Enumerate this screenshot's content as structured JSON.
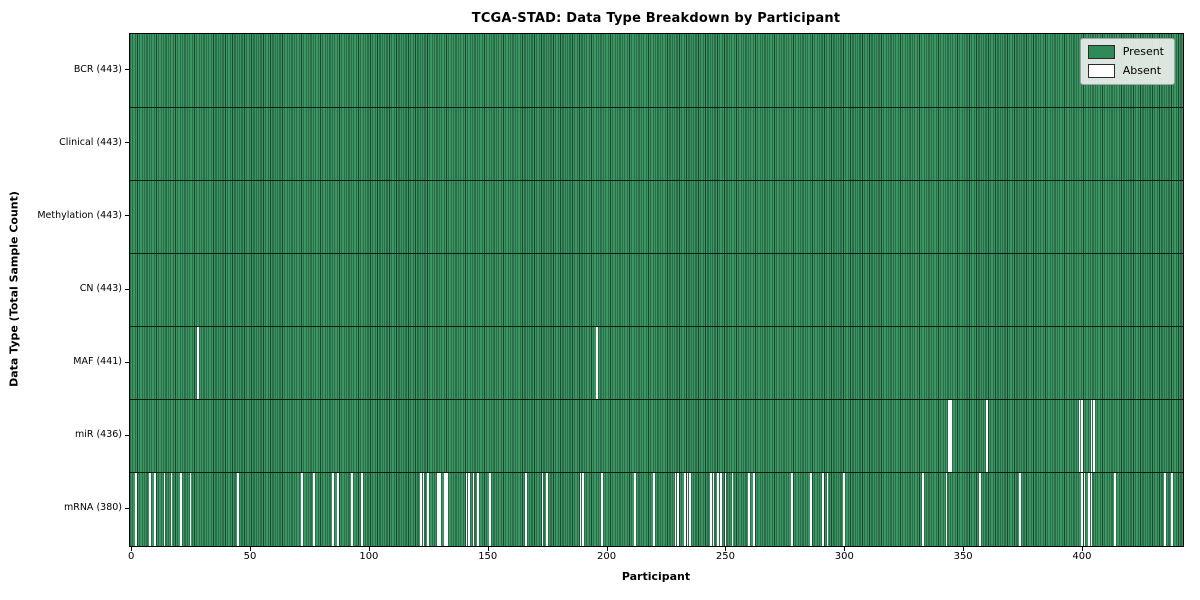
{
  "title": "TCGA-STAD: Data Type Breakdown by Participant",
  "axes": {
    "x_label": "Participant",
    "y_label": "Data Type (Total Sample Count)"
  },
  "legend": {
    "items": [
      {
        "label": "Present",
        "color": "#2e8b57"
      },
      {
        "label": "Absent",
        "color": "#ffffff"
      }
    ]
  },
  "chart_data": {
    "type": "heatmap",
    "title": "TCGA-STAD: Data Type Breakdown by Participant",
    "xlabel": "Participant",
    "ylabel": "Data Type (Total Sample Count)",
    "total_participants": 443,
    "x_tick_values": [
      0,
      50,
      100,
      150,
      200,
      250,
      300,
      350,
      400
    ],
    "legend_position": "upper right",
    "colors": {
      "present_fill": "#3a9662",
      "bar_edge": "#1c4630",
      "absent_fill": "#ffffff",
      "row_separator": "#0b1c11"
    },
    "rows": [
      {
        "label": "BCR (443)",
        "name": "BCR",
        "present_count": 443,
        "absent_participants": []
      },
      {
        "label": "Clinical (443)",
        "name": "Clinical",
        "present_count": 443,
        "absent_participants": []
      },
      {
        "label": "Methylation (443)",
        "name": "Methylation",
        "present_count": 443,
        "absent_participants": []
      },
      {
        "label": "CN (443)",
        "name": "CN",
        "present_count": 443,
        "absent_participants": []
      },
      {
        "label": "MAF (441)",
        "name": "MAF",
        "present_count": 441,
        "absent_participants": [
          28,
          196
        ]
      },
      {
        "label": "miR (436)",
        "name": "miR",
        "present_count": 436,
        "absent_participants": [
          344,
          345,
          360,
          399,
          400,
          404,
          405
        ]
      },
      {
        "label": "mRNA (380)",
        "name": "mRNA",
        "present_count": 380,
        "absent_participants": [
          2,
          8,
          10,
          14,
          17,
          21,
          25,
          45,
          72,
          77,
          85,
          87,
          93,
          97,
          122,
          123,
          125,
          129,
          130,
          132,
          133,
          141,
          142,
          144,
          146,
          151,
          166,
          173,
          175,
          189,
          190,
          198,
          212,
          220,
          229,
          230,
          233,
          234,
          235,
          244,
          245,
          247,
          248,
          250,
          253,
          260,
          262,
          278,
          286,
          291,
          293,
          300,
          333,
          343,
          357,
          374,
          400,
          401,
          403,
          404,
          414,
          435,
          438
        ]
      }
    ]
  }
}
